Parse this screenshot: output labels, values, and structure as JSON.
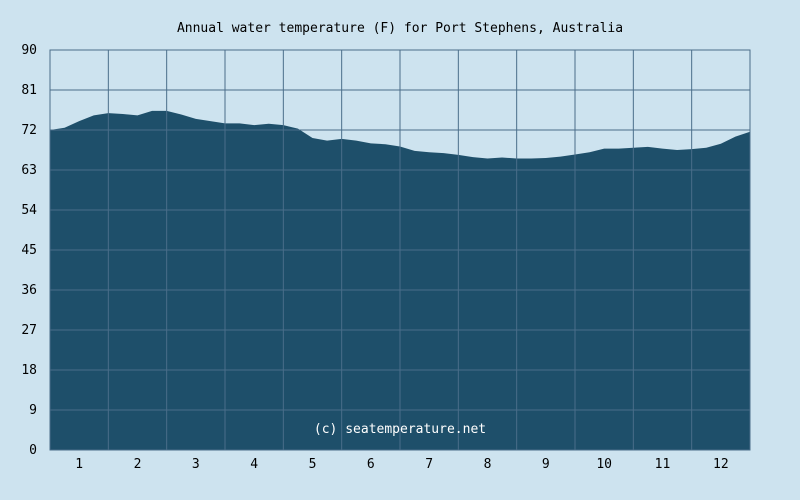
{
  "chart_data": {
    "type": "area",
    "title": "Annual water temperature (F) for Port Stephens, Australia",
    "xlabel": "",
    "ylabel": "",
    "xlim": [
      0.5,
      12.5
    ],
    "ylim": [
      0,
      90
    ],
    "y_ticks": [
      0,
      9,
      18,
      27,
      36,
      45,
      54,
      63,
      72,
      81,
      90
    ],
    "x_ticks": [
      1,
      2,
      3,
      4,
      5,
      6,
      7,
      8,
      9,
      10,
      11,
      12
    ],
    "grid": true,
    "annotation": "(c) seatemperature.net",
    "colors": {
      "background": "#cde3ef",
      "plot_background": "#cde3ef",
      "fill": "#1e4f6a",
      "grid": "#4a6e8a",
      "watermark": "#ffffff"
    },
    "series": [
      {
        "x": [
          0.5,
          0.75,
          1.0,
          1.25,
          1.5,
          1.75,
          2.0,
          2.25,
          2.5,
          2.75,
          3.0,
          3.25,
          3.5,
          3.75,
          4.0,
          4.25,
          4.5,
          4.75,
          5.0,
          5.25,
          5.5,
          5.75,
          6.0,
          6.25,
          6.5,
          6.75,
          7.0,
          7.25,
          7.5,
          7.75,
          8.0,
          8.25,
          8.5,
          8.75,
          9.0,
          9.25,
          9.5,
          9.75,
          10.0,
          10.25,
          10.5,
          10.75,
          11.0,
          11.25,
          11.5,
          11.75,
          12.0,
          12.25,
          12.5
        ],
        "values": [
          72.0,
          72.5,
          74.0,
          75.3,
          75.8,
          75.6,
          75.3,
          76.3,
          76.3,
          75.5,
          74.5,
          74.0,
          73.5,
          73.5,
          73.1,
          73.4,
          73.1,
          72.3,
          70.2,
          69.6,
          70.0,
          69.6,
          69.0,
          68.8,
          68.3,
          67.3,
          67.0,
          66.8,
          66.4,
          65.9,
          65.6,
          65.8,
          65.6,
          65.6,
          65.7,
          66.0,
          66.5,
          67.0,
          67.8,
          67.8,
          68.0,
          68.2,
          67.8,
          67.5,
          67.7,
          68.0,
          68.9,
          70.5,
          71.6
        ]
      }
    ]
  }
}
